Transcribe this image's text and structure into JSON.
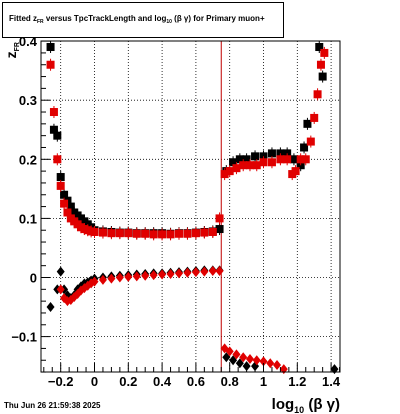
{
  "title": {
    "part1": "Fitted  z",
    "sub1": "FR",
    "part2": "  versus TpcTrackLength and log",
    "sub2": "10",
    "part3": " (β  γ) for Primary muon+"
  },
  "datestamp": "Thu Jun 26 21:59:38 2025",
  "chart_data": {
    "type": "scatter",
    "title": "Fitted z_FR versus TpcTrackLength and log10(β γ) for Primary muon+",
    "xlabel": "log10(β γ)",
    "ylabel": "z_FR",
    "xlim": [
      -0.3,
      1.45
    ],
    "ylim": [
      -0.16,
      0.4
    ],
    "xticks": [
      -0.2,
      0,
      0.2,
      0.4,
      0.6,
      0.8,
      1,
      1.2,
      1.4
    ],
    "xtick_labels": [
      "−0.2",
      "0",
      "0.2",
      "0.4",
      "0.6",
      "0.8",
      "1",
      "1.2",
      "1.4"
    ],
    "yticks": [
      -0.1,
      0,
      0.1,
      0.2,
      0.3,
      0.4
    ],
    "ytick_labels": [
      "−0.1",
      "0",
      "0.1",
      "0.2",
      "0.3",
      "0.4"
    ],
    "grid": true,
    "vertical_line_x": 0.75,
    "series": [
      {
        "marker": "square",
        "color": "#000000",
        "points": [
          [
            -0.26,
            0.39
          ],
          [
            -0.24,
            0.25
          ],
          [
            -0.22,
            0.24
          ],
          [
            -0.2,
            0.17
          ],
          [
            -0.18,
            0.14
          ],
          [
            -0.16,
            0.13
          ],
          [
            -0.14,
            0.12
          ],
          [
            -0.12,
            0.11
          ],
          [
            -0.1,
            0.105
          ],
          [
            -0.08,
            0.1
          ],
          [
            -0.06,
            0.095
          ],
          [
            -0.04,
            0.09
          ],
          [
            -0.02,
            0.085
          ],
          [
            0.0,
            0.08
          ],
          [
            0.05,
            0.078
          ],
          [
            0.1,
            0.077
          ],
          [
            0.15,
            0.076
          ],
          [
            0.2,
            0.076
          ],
          [
            0.25,
            0.075
          ],
          [
            0.3,
            0.075
          ],
          [
            0.35,
            0.075
          ],
          [
            0.4,
            0.075
          ],
          [
            0.45,
            0.074
          ],
          [
            0.5,
            0.075
          ],
          [
            0.55,
            0.075
          ],
          [
            0.6,
            0.076
          ],
          [
            0.65,
            0.077
          ],
          [
            0.7,
            0.078
          ],
          [
            0.74,
            0.082
          ],
          [
            0.78,
            0.18
          ],
          [
            0.82,
            0.195
          ],
          [
            0.86,
            0.2
          ],
          [
            0.9,
            0.2
          ],
          [
            0.95,
            0.205
          ],
          [
            1.0,
            0.205
          ],
          [
            1.05,
            0.21
          ],
          [
            1.1,
            0.21
          ],
          [
            1.14,
            0.21
          ],
          [
            1.18,
            0.2
          ],
          [
            1.22,
            0.19
          ],
          [
            1.24,
            0.22
          ],
          [
            1.26,
            0.26
          ],
          [
            1.33,
            0.39
          ],
          [
            1.35,
            0.34
          ]
        ]
      },
      {
        "marker": "square",
        "color": "#e00000",
        "points": [
          [
            -0.26,
            0.36
          ],
          [
            -0.24,
            0.28
          ],
          [
            -0.22,
            0.2
          ],
          [
            -0.2,
            0.155
          ],
          [
            -0.18,
            0.125
          ],
          [
            -0.16,
            0.11
          ],
          [
            -0.14,
            0.1
          ],
          [
            -0.12,
            0.095
          ],
          [
            -0.1,
            0.09
          ],
          [
            -0.08,
            0.085
          ],
          [
            -0.06,
            0.082
          ],
          [
            -0.04,
            0.08
          ],
          [
            -0.02,
            0.078
          ],
          [
            0.0,
            0.077
          ],
          [
            0.05,
            0.076
          ],
          [
            0.1,
            0.075
          ],
          [
            0.15,
            0.075
          ],
          [
            0.2,
            0.075
          ],
          [
            0.25,
            0.074
          ],
          [
            0.3,
            0.074
          ],
          [
            0.35,
            0.073
          ],
          [
            0.4,
            0.073
          ],
          [
            0.45,
            0.073
          ],
          [
            0.5,
            0.074
          ],
          [
            0.55,
            0.074
          ],
          [
            0.6,
            0.075
          ],
          [
            0.65,
            0.076
          ],
          [
            0.7,
            0.077
          ],
          [
            0.74,
            0.1
          ],
          [
            0.77,
            0.175
          ],
          [
            0.8,
            0.18
          ],
          [
            0.84,
            0.185
          ],
          [
            0.88,
            0.19
          ],
          [
            0.92,
            0.19
          ],
          [
            0.96,
            0.19
          ],
          [
            1.0,
            0.195
          ],
          [
            1.05,
            0.195
          ],
          [
            1.1,
            0.2
          ],
          [
            1.14,
            0.2
          ],
          [
            1.17,
            0.175
          ],
          [
            1.19,
            0.18
          ],
          [
            1.22,
            0.2
          ],
          [
            1.25,
            0.2
          ],
          [
            1.28,
            0.23
          ],
          [
            1.3,
            0.27
          ],
          [
            1.32,
            0.31
          ],
          [
            1.34,
            0.36
          ],
          [
            1.36,
            0.38
          ]
        ]
      },
      {
        "marker": "diamond",
        "color": "#000000",
        "points": [
          [
            -0.26,
            -0.05
          ],
          [
            -0.22,
            -0.02
          ],
          [
            -0.2,
            0.01
          ],
          [
            -0.18,
            -0.02
          ],
          [
            -0.16,
            -0.03
          ],
          [
            -0.14,
            -0.035
          ],
          [
            -0.12,
            -0.03
          ],
          [
            -0.1,
            -0.02
          ],
          [
            -0.08,
            -0.015
          ],
          [
            -0.06,
            -0.01
          ],
          [
            -0.04,
            -0.008
          ],
          [
            -0.02,
            -0.005
          ],
          [
            0.0,
            -0.002
          ],
          [
            0.05,
            0.0
          ],
          [
            0.1,
            0.002
          ],
          [
            0.15,
            0.003
          ],
          [
            0.2,
            0.004
          ],
          [
            0.25,
            0.005
          ],
          [
            0.3,
            0.006
          ],
          [
            0.35,
            0.007
          ],
          [
            0.4,
            0.007
          ],
          [
            0.45,
            0.008
          ],
          [
            0.5,
            0.009
          ],
          [
            0.55,
            0.01
          ],
          [
            0.6,
            0.011
          ],
          [
            0.65,
            0.012
          ],
          [
            0.7,
            0.012
          ],
          [
            0.74,
            0.012
          ],
          [
            0.78,
            -0.135
          ],
          [
            0.82,
            -0.14
          ],
          [
            0.86,
            -0.145
          ],
          [
            0.9,
            -0.15
          ],
          [
            0.95,
            -0.15
          ],
          [
            1.42,
            -0.155
          ]
        ]
      },
      {
        "marker": "diamond",
        "color": "#e00000",
        "points": [
          [
            -0.2,
            -0.02
          ],
          [
            -0.18,
            -0.035
          ],
          [
            -0.16,
            -0.04
          ],
          [
            -0.14,
            -0.038
          ],
          [
            -0.12,
            -0.033
          ],
          [
            -0.1,
            -0.028
          ],
          [
            -0.08,
            -0.022
          ],
          [
            -0.06,
            -0.018
          ],
          [
            -0.04,
            -0.014
          ],
          [
            -0.02,
            -0.01
          ],
          [
            0.0,
            -0.007
          ],
          [
            0.05,
            -0.004
          ],
          [
            0.1,
            -0.002
          ],
          [
            0.15,
            0.0
          ],
          [
            0.2,
            0.001
          ],
          [
            0.25,
            0.002
          ],
          [
            0.3,
            0.003
          ],
          [
            0.35,
            0.004
          ],
          [
            0.4,
            0.005
          ],
          [
            0.45,
            0.006
          ],
          [
            0.5,
            0.007
          ],
          [
            0.55,
            0.008
          ],
          [
            0.6,
            0.009
          ],
          [
            0.65,
            0.01
          ],
          [
            0.7,
            0.011
          ],
          [
            0.74,
            0.011
          ],
          [
            0.77,
            -0.12
          ],
          [
            0.8,
            -0.125
          ],
          [
            0.84,
            -0.13
          ],
          [
            0.88,
            -0.135
          ],
          [
            0.92,
            -0.138
          ],
          [
            0.96,
            -0.14
          ],
          [
            1.0,
            -0.142
          ],
          [
            1.04,
            -0.145
          ],
          [
            1.08,
            -0.148
          ],
          [
            1.12,
            -0.155
          ]
        ]
      }
    ]
  }
}
